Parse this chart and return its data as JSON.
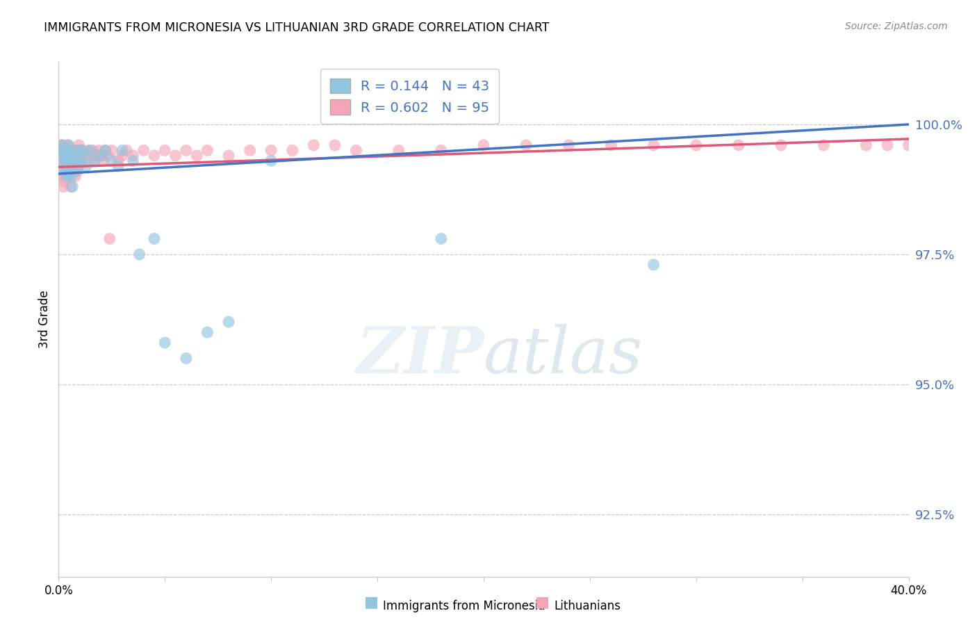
{
  "title": "IMMIGRANTS FROM MICRONESIA VS LITHUANIAN 3RD GRADE CORRELATION CHART",
  "source": "Source: ZipAtlas.com",
  "ylabel": "3rd Grade",
  "ytick_values": [
    92.5,
    95.0,
    97.5,
    100.0
  ],
  "xmin": 0.0,
  "xmax": 40.0,
  "ymin": 91.3,
  "ymax": 101.2,
  "legend_blue_label": "Immigrants from Micronesia",
  "legend_pink_label": "Lithuanians",
  "R_blue": 0.144,
  "N_blue": 43,
  "R_pink": 0.602,
  "N_pink": 95,
  "blue_color": "#92c5de",
  "pink_color": "#f4a6b8",
  "blue_line_color": "#4472c4",
  "pink_line_color": "#e05878",
  "blue_line_y0": 99.05,
  "blue_line_y1": 100.0,
  "pink_line_y0": 99.18,
  "pink_line_y1": 99.72,
  "blue_x": [
    0.15,
    0.18,
    0.22,
    0.28,
    0.3,
    0.32,
    0.35,
    0.38,
    0.4,
    0.42,
    0.45,
    0.48,
    0.5,
    0.55,
    0.6,
    0.65,
    0.7,
    0.75,
    0.8,
    0.85,
    0.9,
    0.95,
    1.0,
    1.1,
    1.2,
    1.3,
    1.5,
    1.7,
    2.0,
    2.2,
    2.5,
    2.8,
    3.0,
    3.5,
    3.8,
    4.5,
    5.0,
    6.0,
    7.0,
    8.0,
    10.0,
    18.0,
    28.0
  ],
  "blue_y": [
    99.6,
    99.4,
    99.5,
    99.2,
    99.3,
    99.1,
    99.3,
    99.2,
    99.0,
    99.4,
    99.5,
    99.6,
    99.4,
    99.1,
    99.0,
    98.8,
    99.2,
    99.1,
    99.3,
    99.5,
    99.4,
    99.2,
    99.3,
    99.5,
    99.4,
    99.2,
    99.5,
    99.3,
    99.4,
    99.5,
    99.3,
    99.2,
    99.5,
    99.3,
    97.5,
    97.8,
    95.8,
    95.5,
    96.0,
    96.2,
    99.3,
    97.8,
    97.3
  ],
  "pink_x": [
    0.1,
    0.12,
    0.15,
    0.18,
    0.2,
    0.22,
    0.25,
    0.28,
    0.3,
    0.32,
    0.35,
    0.38,
    0.4,
    0.42,
    0.45,
    0.48,
    0.5,
    0.52,
    0.55,
    0.58,
    0.6,
    0.62,
    0.65,
    0.68,
    0.7,
    0.75,
    0.8,
    0.85,
    0.9,
    0.95,
    1.0,
    1.1,
    1.2,
    1.3,
    1.4,
    1.5,
    1.6,
    1.7,
    1.8,
    1.9,
    2.0,
    2.1,
    2.2,
    2.3,
    2.5,
    2.8,
    3.0,
    3.2,
    3.5,
    4.0,
    4.5,
    5.0,
    5.5,
    6.0,
    6.5,
    7.0,
    8.0,
    9.0,
    10.0,
    11.0,
    12.0,
    13.0,
    14.0,
    16.0,
    18.0,
    20.0,
    22.0,
    24.0,
    26.0,
    28.0,
    30.0,
    32.0,
    34.0,
    36.0,
    38.0,
    39.0,
    40.0,
    0.08,
    0.14,
    0.17,
    0.21,
    0.24,
    0.27,
    0.33,
    0.36,
    0.44,
    0.46,
    0.54,
    0.57,
    0.72,
    0.78,
    0.88,
    0.92,
    1.05,
    2.4
  ],
  "pink_y": [
    99.6,
    99.5,
    99.4,
    99.5,
    99.3,
    99.6,
    99.4,
    99.5,
    99.3,
    99.5,
    99.4,
    99.3,
    99.5,
    99.6,
    99.4,
    99.3,
    99.5,
    99.4,
    99.3,
    99.5,
    99.4,
    99.3,
    99.5,
    99.4,
    99.3,
    99.5,
    99.4,
    99.3,
    99.5,
    99.6,
    99.4,
    99.5,
    99.4,
    99.3,
    99.5,
    99.4,
    99.5,
    99.3,
    99.4,
    99.5,
    99.4,
    99.3,
    99.5,
    99.4,
    99.5,
    99.3,
    99.4,
    99.5,
    99.4,
    99.5,
    99.4,
    99.5,
    99.4,
    99.5,
    99.4,
    99.5,
    99.4,
    99.5,
    99.5,
    99.5,
    99.6,
    99.6,
    99.5,
    99.5,
    99.5,
    99.6,
    99.6,
    99.6,
    99.6,
    99.6,
    99.6,
    99.6,
    99.6,
    99.6,
    99.6,
    99.6,
    99.6,
    99.2,
    99.1,
    99.0,
    98.8,
    99.0,
    98.9,
    99.1,
    99.2,
    99.0,
    99.1,
    99.3,
    98.8,
    99.2,
    99.0,
    99.1,
    99.2,
    99.3,
    97.8
  ]
}
